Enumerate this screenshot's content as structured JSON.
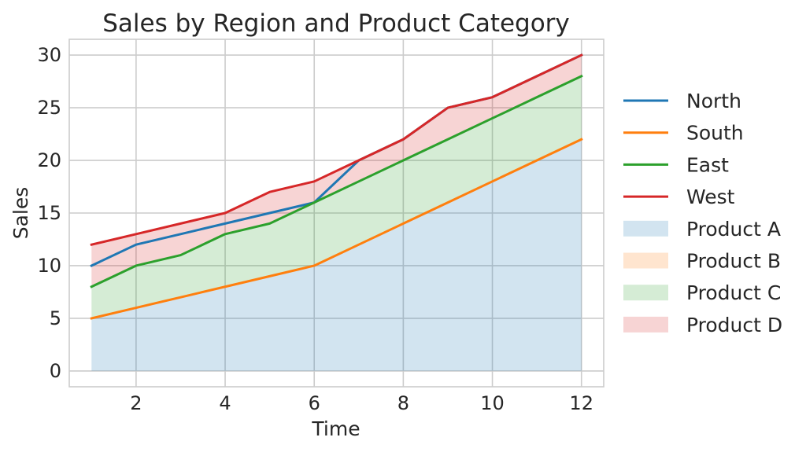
{
  "chart_data": {
    "type": "area",
    "title": "Sales by Region and Product Category",
    "xlabel": "Time",
    "ylabel": "Sales",
    "xlim": [
      0.5,
      12.5
    ],
    "ylim": [
      -1.5,
      31.5
    ],
    "xticks": [
      2,
      4,
      6,
      8,
      10,
      12
    ],
    "yticks": [
      0,
      5,
      10,
      15,
      20,
      25,
      30
    ],
    "grid": true,
    "legend_position": "right",
    "x": [
      1,
      2,
      3,
      4,
      5,
      6,
      7,
      8,
      9,
      10,
      11,
      12
    ],
    "lines": [
      {
        "name": "North",
        "color": "#1f77b4",
        "values": [
          10,
          12,
          13,
          14,
          15,
          16,
          20,
          22,
          25,
          26,
          28,
          30
        ]
      },
      {
        "name": "South",
        "color": "#ff7f0e",
        "values": [
          5,
          6,
          7,
          8,
          9,
          10,
          12,
          14,
          16,
          18,
          20,
          22
        ]
      },
      {
        "name": "East",
        "color": "#2ca02c",
        "values": [
          8,
          10,
          11,
          13,
          14,
          16,
          18,
          20,
          22,
          24,
          26,
          28
        ]
      },
      {
        "name": "West",
        "color": "#d62728",
        "values": [
          12,
          13,
          14,
          15,
          17,
          18,
          20,
          22,
          25,
          26,
          28,
          30
        ]
      }
    ],
    "areas": [
      {
        "name": "Product A",
        "color": "#1f77b4",
        "between": [
          "zero",
          "South"
        ]
      },
      {
        "name": "Product B",
        "color": "#ff7f0e",
        "between": [
          "South",
          "South"
        ]
      },
      {
        "name": "Product C",
        "color": "#2ca02c",
        "between": [
          "South",
          "East"
        ]
      },
      {
        "name": "Product D",
        "color": "#d62728",
        "between": [
          "East",
          "West"
        ]
      }
    ]
  }
}
